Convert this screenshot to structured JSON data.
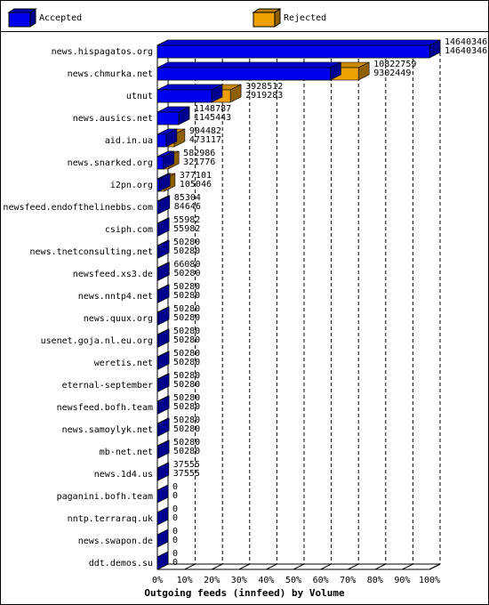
{
  "chart_data": {
    "type": "bar",
    "orientation": "horizontal",
    "depth3d": true,
    "title": "Outgoing feeds (innfeed) by Volume",
    "categories": [
      "news.hispagatos.org",
      "news.chmurka.net",
      "utnut",
      "news.ausics.net",
      "aid.in.ua",
      "news.snarked.org",
      "i2pn.org",
      "newsfeed.endofthelinebbs.com",
      "csiph.com",
      "news.tnetconsulting.net",
      "newsfeed.xs3.de",
      "news.nntp4.net",
      "news.quux.org",
      "usenet.goja.nl.eu.org",
      "weretis.net",
      "eternal-september",
      "newsfeed.bofh.team",
      "news.samoylyk.net",
      "mb-net.net",
      "news.1d4.us",
      "paganini.bofh.team",
      "nntp.terraraq.uk",
      "news.swapon.de",
      "ddt.demos.su"
    ],
    "series": [
      {
        "name": "Accepted",
        "color": "#0000ee",
        "values": [
          14640346,
          9302449,
          2919283,
          1145443,
          473117,
          321776,
          105046,
          84646,
          55982,
          50280,
          50280,
          50280,
          50280,
          50280,
          50280,
          50280,
          50280,
          50280,
          50280,
          37555,
          0,
          0,
          0,
          0
        ]
      },
      {
        "name": "Rejected",
        "color": "#eea000",
        "values": [
          14640346,
          10822759,
          3928512,
          1148787,
          904482,
          582986,
          377101,
          85304,
          55982,
          50280,
          66080,
          50280,
          50280,
          50280,
          50280,
          50280,
          50280,
          50280,
          50280,
          37555,
          0,
          0,
          0,
          0
        ]
      }
    ],
    "xlim": [
      0,
      14640346
    ],
    "xticks": [
      {
        "value": 0,
        "label": "0%"
      },
      {
        "value": 1464034.6,
        "label": "10%"
      },
      {
        "value": 2928069.2,
        "label": "20%"
      },
      {
        "value": 4392103.8,
        "label": "30%"
      },
      {
        "value": 5856138.4,
        "label": "40%"
      },
      {
        "value": 7320173,
        "label": "50%"
      },
      {
        "value": 8784207.6,
        "label": "60%"
      },
      {
        "value": 10248242.2,
        "label": "70%"
      },
      {
        "value": 11712276.8,
        "label": "80%"
      },
      {
        "value": 13176311.4,
        "label": "90%"
      },
      {
        "value": 14640346,
        "label": "100%"
      }
    ],
    "grid": true
  }
}
